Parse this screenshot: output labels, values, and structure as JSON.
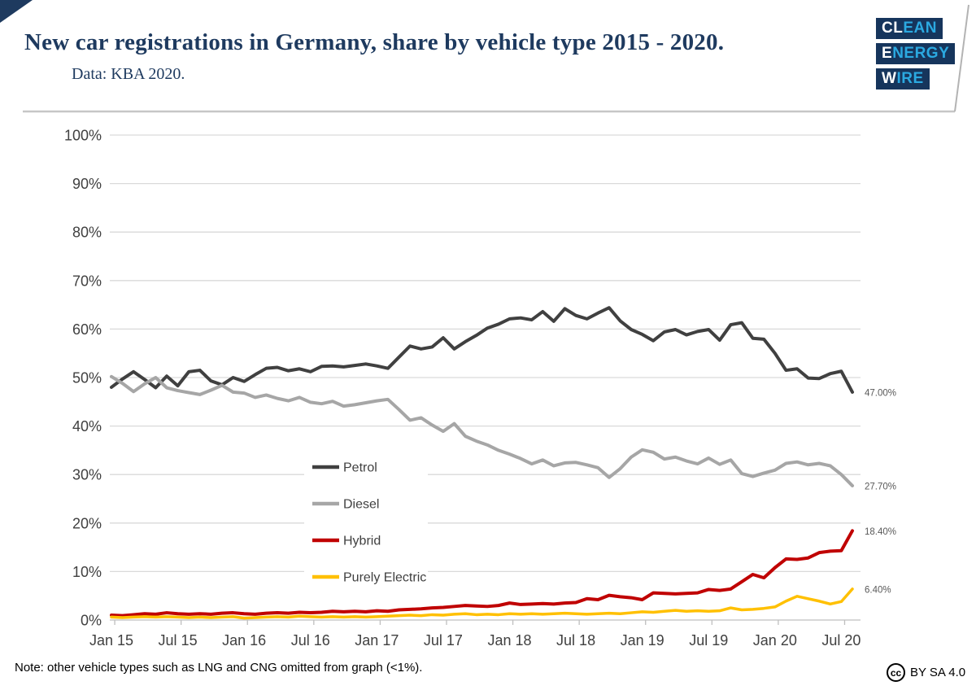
{
  "header": {
    "title": "New car registrations in Germany, share by vehicle type 2015 - 2020.",
    "subtitle": "Data: KBA 2020.",
    "logo": {
      "lines": [
        {
          "white": "CL",
          "blue": "EAN"
        },
        {
          "white": "E",
          "blue": "NERGY"
        },
        {
          "white": "W",
          "blue": "IRE"
        }
      ],
      "box_color": "#16355c",
      "blue_color": "#2ba9e1"
    }
  },
  "chart_data": {
    "type": "line",
    "title": "New car registrations in Germany, share by vehicle type 2015 - 2020.",
    "source": "Data: KBA 2020.",
    "x_start": "Jan 2015",
    "x_end": "Aug 2020",
    "x_tick_labels": [
      "Jan 15",
      "Jul 15",
      "Jan 16",
      "Jul 16",
      "Jan 17",
      "Jul 17",
      "Jan 18",
      "Jul 18",
      "Jan 19",
      "Jul 19",
      "Jan 20",
      "Jul 20"
    ],
    "ylim": [
      0,
      100
    ],
    "y_tick_step": 10,
    "y_tick_suffix": "%",
    "grid": true,
    "legend_position": "inside-left-lower",
    "axis_text_color": "#404040",
    "grid_color": "#d9d9d9",
    "series": [
      {
        "name": "Petrol",
        "color": "#404040",
        "end_label": "47.00%",
        "values": [
          48.0,
          49.7,
          51.2,
          49.6,
          47.9,
          50.3,
          48.3,
          51.2,
          51.5,
          49.3,
          48.5,
          50.0,
          49.2,
          50.6,
          51.9,
          52.1,
          51.4,
          51.8,
          51.2,
          52.3,
          52.4,
          52.2,
          52.5,
          52.8,
          52.4,
          51.9,
          54.2,
          56.5,
          55.9,
          56.3,
          58.2,
          55.9,
          57.4,
          58.7,
          60.2,
          61.0,
          62.1,
          62.3,
          61.9,
          63.6,
          61.6,
          64.2,
          62.8,
          62.1,
          63.3,
          64.4,
          61.7,
          59.9,
          58.9,
          57.6,
          59.4,
          59.9,
          58.8,
          59.5,
          59.9,
          57.7,
          60.9,
          61.3,
          58.1,
          57.9,
          55.0,
          51.5,
          51.8,
          49.9,
          49.8,
          50.8,
          51.3,
          47.0
        ]
      },
      {
        "name": "Diesel",
        "color": "#a6a6a6",
        "end_label": "27.70%",
        "values": [
          50.2,
          48.8,
          47.1,
          48.7,
          50.0,
          47.9,
          47.3,
          46.9,
          46.5,
          47.4,
          48.4,
          47.0,
          46.8,
          45.9,
          46.4,
          45.7,
          45.2,
          45.9,
          44.9,
          44.6,
          45.1,
          44.1,
          44.4,
          44.8,
          45.2,
          45.5,
          43.4,
          41.2,
          41.7,
          40.2,
          38.9,
          40.5,
          37.9,
          36.9,
          36.1,
          35.0,
          34.2,
          33.3,
          32.2,
          33.0,
          31.8,
          32.4,
          32.5,
          32.0,
          31.4,
          29.4,
          31.2,
          33.6,
          35.1,
          34.6,
          33.2,
          33.6,
          32.8,
          32.2,
          33.4,
          32.1,
          33.0,
          30.2,
          29.6,
          30.3,
          30.9,
          32.3,
          32.6,
          32.0,
          32.3,
          31.8,
          30.0,
          27.7
        ]
      },
      {
        "name": "Hybrid",
        "color": "#c00000",
        "end_label": "18.40%",
        "values": [
          1.0,
          0.9,
          1.1,
          1.3,
          1.2,
          1.5,
          1.3,
          1.2,
          1.3,
          1.2,
          1.4,
          1.5,
          1.3,
          1.2,
          1.4,
          1.5,
          1.4,
          1.6,
          1.5,
          1.6,
          1.8,
          1.7,
          1.8,
          1.7,
          1.9,
          1.8,
          2.1,
          2.2,
          2.3,
          2.5,
          2.6,
          2.8,
          3.0,
          2.9,
          2.8,
          3.0,
          3.5,
          3.2,
          3.3,
          3.4,
          3.3,
          3.5,
          3.6,
          4.4,
          4.2,
          5.1,
          4.8,
          4.6,
          4.2,
          5.6,
          5.5,
          5.4,
          5.5,
          5.6,
          6.3,
          6.1,
          6.4,
          7.9,
          9.4,
          8.7,
          10.8,
          12.6,
          12.5,
          12.8,
          13.9,
          14.2,
          14.3,
          18.4
        ]
      },
      {
        "name": "Purely Electric",
        "color": "#ffc000",
        "end_label": "6.40%",
        "values": [
          0.6,
          0.5,
          0.6,
          0.7,
          0.6,
          0.7,
          0.6,
          0.5,
          0.6,
          0.5,
          0.6,
          0.7,
          0.4,
          0.5,
          0.6,
          0.7,
          0.6,
          0.8,
          0.7,
          0.6,
          0.7,
          0.6,
          0.7,
          0.6,
          0.7,
          0.8,
          0.9,
          1.0,
          0.9,
          1.1,
          1.0,
          1.2,
          1.3,
          1.1,
          1.2,
          1.1,
          1.3,
          1.2,
          1.3,
          1.2,
          1.3,
          1.4,
          1.3,
          1.2,
          1.3,
          1.4,
          1.3,
          1.5,
          1.7,
          1.6,
          1.8,
          2.0,
          1.8,
          1.9,
          1.8,
          1.9,
          2.5,
          2.1,
          2.2,
          2.4,
          2.7,
          3.9,
          4.9,
          4.4,
          3.9,
          3.3,
          3.8,
          6.4
        ]
      }
    ]
  },
  "footer": {
    "note": "Note: other vehicle types such as LNG and CNG omitted from graph (<1%).",
    "cc_badge": "cc",
    "license": "BY SA 4.0"
  }
}
